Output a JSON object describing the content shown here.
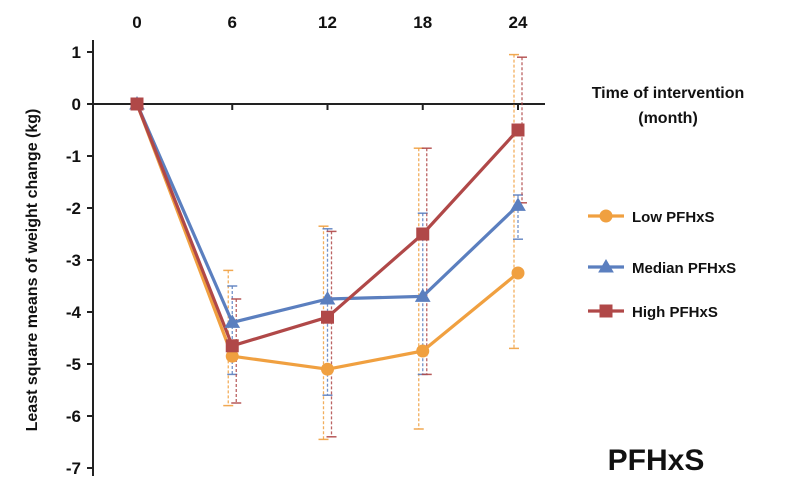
{
  "chart_data": {
    "type": "line",
    "x": [
      0,
      6,
      12,
      18,
      24
    ],
    "x_tick_labels": [
      "0",
      "6",
      "12",
      "18",
      "24"
    ],
    "xlabel_line1": "Time of intervention",
    "xlabel_line2": "(month)",
    "ylabel": "Least square means of weight change (kg)",
    "ylim": [
      -7,
      1
    ],
    "y_ticks": [
      1,
      0,
      -1,
      -2,
      -3,
      -4,
      -5,
      -6,
      -7
    ],
    "y_tick_labels": [
      "1",
      "0",
      "-1",
      "-2",
      "-3",
      "-4",
      "-5",
      "-6",
      "-7"
    ],
    "x_axis_position": "top",
    "grid": false,
    "legend_position": "right",
    "series": [
      {
        "name": "Low PFHxS",
        "color": "#f0a040",
        "marker": "circle",
        "values": [
          0,
          -4.85,
          -5.1,
          -4.75,
          -3.25
        ],
        "error_low": [
          0,
          -5.8,
          -6.45,
          -6.25,
          -4.7
        ],
        "error_high": [
          0,
          -3.2,
          -2.35,
          -0.85,
          0.95
        ]
      },
      {
        "name": "Median PFHxS",
        "color": "#5b7fbf",
        "marker": "triangle",
        "values": [
          0,
          -4.2,
          -3.75,
          -3.7,
          -1.95
        ],
        "error_low": [
          0,
          -5.2,
          -5.6,
          -5.2,
          -2.6
        ],
        "error_high": [
          0,
          -3.5,
          -2.4,
          -2.1,
          -1.75
        ]
      },
      {
        "name": "High PFHxS",
        "color": "#b04848",
        "marker": "square",
        "values": [
          0,
          -4.65,
          -4.1,
          -2.5,
          -0.5
        ],
        "error_low": [
          0,
          -5.75,
          -6.4,
          -5.2,
          -1.9
        ],
        "error_high": [
          0,
          -3.75,
          -2.45,
          -0.85,
          0.9
        ]
      }
    ],
    "annotation": "PFHxS"
  }
}
